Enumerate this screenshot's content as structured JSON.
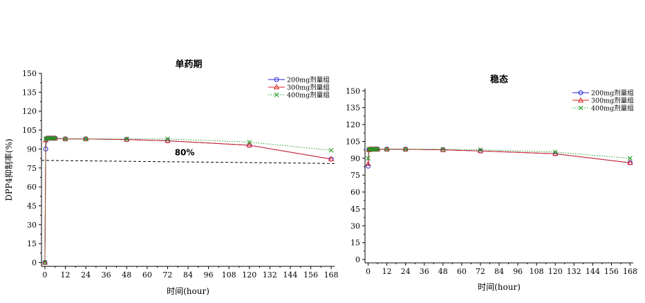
{
  "chart_data": [
    {
      "type": "line",
      "title": "单药期",
      "xlabel": "时间(hour)",
      "ylabel": "DPP4抑制率(%)",
      "xlim": [
        -2,
        170
      ],
      "ylim": [
        -3,
        150
      ],
      "xticks": [
        0,
        12,
        24,
        36,
        48,
        60,
        72,
        84,
        96,
        108,
        120,
        132,
        144,
        156,
        168
      ],
      "yticks": [
        0,
        15,
        30,
        45,
        60,
        75,
        90,
        105,
        120,
        135,
        150
      ],
      "legend_position": "top-right",
      "series": [
        {
          "name": "200mg剂量组",
          "color": "#2222dd",
          "marker": "circle",
          "linestyle": "solid",
          "x": [
            0,
            0.5,
            1,
            2,
            3,
            4,
            5,
            6,
            12,
            24,
            48,
            72,
            120,
            168
          ],
          "y": [
            0,
            90,
            98,
            98.5,
            98.5,
            98.5,
            98.5,
            98.5,
            98,
            98,
            97.5,
            96.5,
            93,
            82
          ]
        },
        {
          "name": "300mg剂量组",
          "color": "#dd2222",
          "marker": "triangle",
          "linestyle": "solid",
          "x": [
            0,
            0.5,
            1,
            2,
            3,
            4,
            5,
            6,
            12,
            24,
            48,
            72,
            120,
            168
          ],
          "y": [
            0,
            97,
            98.5,
            98.5,
            98.5,
            98.5,
            98.5,
            98.5,
            98,
            98,
            97.5,
            96.5,
            93,
            82
          ]
        },
        {
          "name": "400mg剂量组",
          "color": "#229922",
          "marker": "x",
          "linestyle": "dotted",
          "x": [
            0,
            0.5,
            1,
            2,
            3,
            4,
            5,
            6,
            12,
            24,
            48,
            72,
            120,
            168
          ],
          "y": [
            0,
            98,
            98.5,
            98.5,
            98.5,
            98.5,
            98.5,
            98.5,
            98,
            98,
            98,
            98,
            95.5,
            89
          ]
        }
      ],
      "annotations": [
        {
          "text": "80%",
          "x": 82,
          "y": 85
        },
        {
          "type": "dashed-line",
          "x": [
            -2,
            170
          ],
          "y": [
            81,
            78.5
          ],
          "color": "#000000"
        }
      ]
    },
    {
      "type": "line",
      "title": "稳态",
      "xlabel": "时间(hour)",
      "ylabel": "",
      "xlim": [
        -2,
        170
      ],
      "ylim": [
        -3,
        152
      ],
      "xticks": [
        0,
        12,
        24,
        36,
        48,
        60,
        72,
        84,
        96,
        108,
        120,
        132,
        144,
        156,
        168
      ],
      "yticks": [
        0,
        15,
        30,
        45,
        60,
        75,
        90,
        105,
        120,
        135,
        150
      ],
      "legend_position": "top-right",
      "series": [
        {
          "name": "200mg剂量组",
          "color": "#2222dd",
          "marker": "circle",
          "linestyle": "solid",
          "x": [
            0,
            0.5,
            1,
            2,
            3,
            4,
            5,
            6,
            12,
            24,
            48,
            72,
            120,
            168
          ],
          "y": [
            83,
            97.5,
            98,
            98,
            98,
            98,
            98,
            98,
            98,
            98,
            97.5,
            96.5,
            94,
            86
          ]
        },
        {
          "name": "300mg剂量组",
          "color": "#dd2222",
          "marker": "triangle",
          "linestyle": "solid",
          "x": [
            0,
            0.5,
            1,
            2,
            3,
            4,
            5,
            6,
            12,
            24,
            48,
            72,
            120,
            168
          ],
          "y": [
            85,
            97.5,
            98,
            98,
            98,
            98,
            98,
            98,
            98,
            98,
            97.5,
            96.5,
            94,
            86
          ]
        },
        {
          "name": "400mg剂量组",
          "color": "#229922",
          "marker": "x",
          "linestyle": "dotted",
          "x": [
            0,
            0.5,
            1,
            2,
            3,
            4,
            5,
            6,
            12,
            24,
            48,
            72,
            120,
            168
          ],
          "y": [
            90,
            98,
            98,
            98,
            98,
            98,
            98,
            98,
            98,
            98,
            98,
            97.5,
            95.5,
            90
          ]
        }
      ]
    }
  ]
}
